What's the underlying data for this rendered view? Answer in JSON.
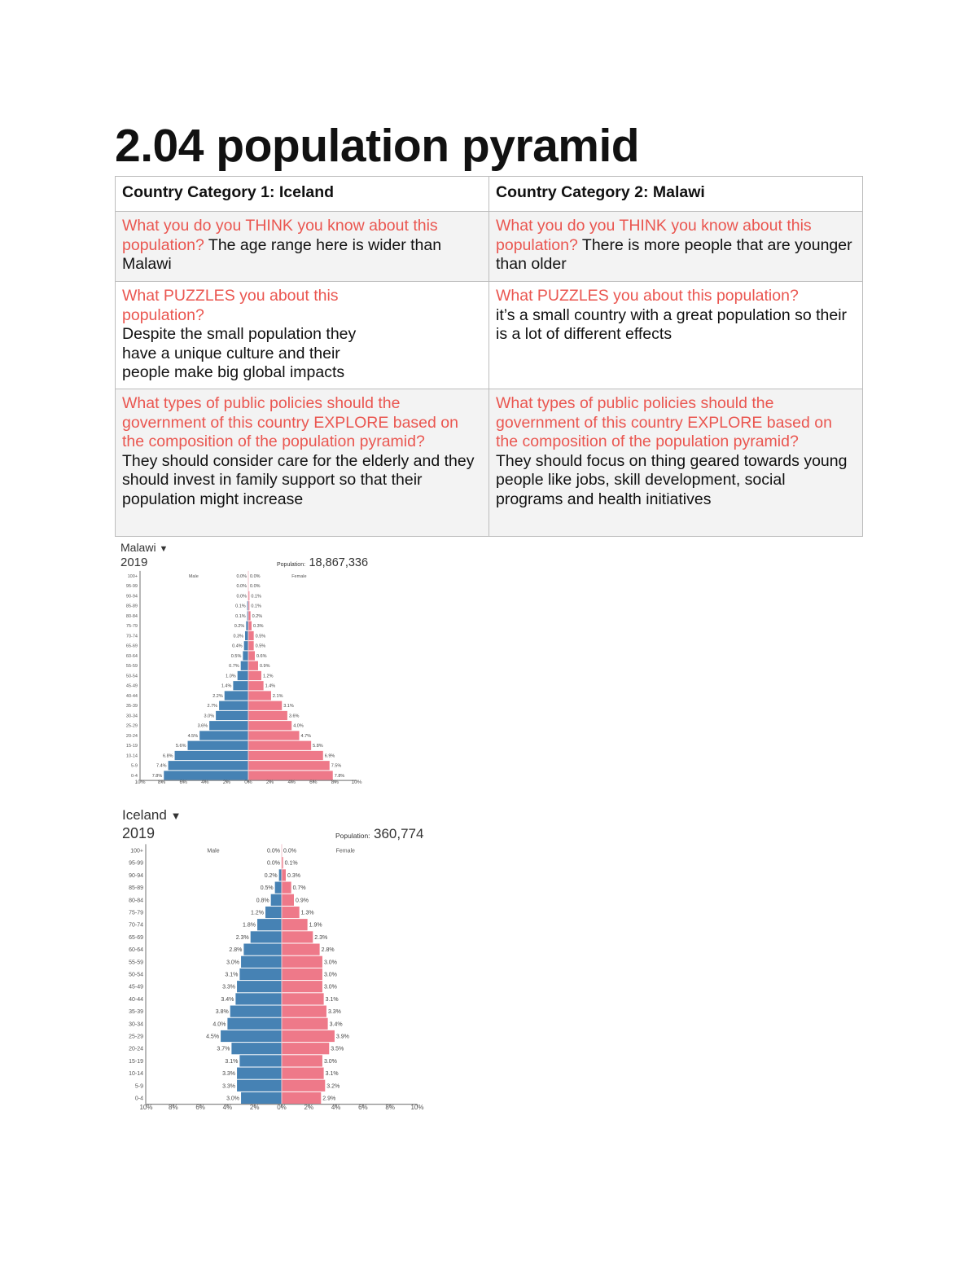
{
  "title": "2.04 population pyramid",
  "table": {
    "headers": [
      "Country Category 1: Iceland",
      "Country Category 2: Malawi"
    ],
    "rows": [
      {
        "cells": [
          {
            "question": "What you do you THINK you know about this population?",
            "answer": " The age range here is wider than Malawi"
          },
          {
            "question": "What you do you THINK you know about this population?",
            "answer": " There is more people that are younger than older"
          }
        ]
      },
      {
        "cells": [
          {
            "question": "What PUZZLES you about this population?",
            "answer": "Despite the small population they have a unique culture and their people make big global impacts"
          },
          {
            "question": "What PUZZLES you about this population?",
            "answer": "it’s a small country with a great population so their is a lot of different effects"
          }
        ]
      },
      {
        "cells": [
          {
            "question": "What types of public policies should the government of this country EXPLORE based on the composition of the population pyramid?",
            "answer": " They should consider care for the elderly and they should invest in family support so that their population might increase"
          },
          {
            "question": "What types of public policies should the government of this country EXPLORE based on the composition of the population pyramid?",
            "answer": "They should focus on thing geared towards young people like jobs, skill development, social programs and health initiatives"
          }
        ]
      }
    ]
  },
  "colors": {
    "male": "#4682b4",
    "female": "#ee7989",
    "question": "#ea5650"
  },
  "chart_data": [
    {
      "type": "bar",
      "subtype": "population-pyramid",
      "country": "Malawi",
      "dropdown_icon": "caret-down-icon",
      "year": "2019",
      "population_label": "Population:",
      "population": "18,867,336",
      "categories": [
        "100+",
        "95-99",
        "90-94",
        "85-89",
        "80-84",
        "75-79",
        "70-74",
        "65-69",
        "60-64",
        "55-59",
        "50-54",
        "45-49",
        "40-44",
        "35-39",
        "30-34",
        "25-29",
        "20-24",
        "15-19",
        "10-14",
        "5-9",
        "0-4"
      ],
      "series": [
        {
          "name": "Male",
          "values": [
            0.0,
            0.0,
            0.0,
            0.1,
            0.1,
            0.2,
            0.3,
            0.4,
            0.5,
            0.7,
            1.0,
            1.4,
            2.2,
            2.7,
            3.0,
            3.6,
            4.5,
            5.6,
            6.8,
            7.4,
            7.8
          ]
        },
        {
          "name": "Female",
          "values": [
            0.0,
            0.0,
            0.1,
            0.1,
            0.2,
            0.3,
            0.5,
            0.5,
            0.6,
            0.9,
            1.2,
            1.4,
            2.1,
            3.1,
            3.6,
            4.0,
            4.7,
            5.8,
            6.9,
            7.5,
            7.8
          ]
        }
      ],
      "x_ticks": [
        "10%",
        "8%",
        "6%",
        "4%",
        "2%",
        "0%",
        "2%",
        "4%",
        "6%",
        "8%",
        "10%"
      ],
      "xlim": [
        -10,
        10
      ]
    },
    {
      "type": "bar",
      "subtype": "population-pyramid",
      "country": "Iceland",
      "dropdown_icon": "caret-down-icon",
      "year": "2019",
      "population_label": "Population:",
      "population": "360,774",
      "categories": [
        "100+",
        "95-99",
        "90-94",
        "85-89",
        "80-84",
        "75-79",
        "70-74",
        "65-69",
        "60-64",
        "55-59",
        "50-54",
        "45-49",
        "40-44",
        "35-39",
        "30-34",
        "25-29",
        "20-24",
        "15-19",
        "10-14",
        "5-9",
        "0-4"
      ],
      "series": [
        {
          "name": "Male",
          "values": [
            0.0,
            0.0,
            0.2,
            0.5,
            0.8,
            1.2,
            1.8,
            2.3,
            2.8,
            3.0,
            3.1,
            3.3,
            3.4,
            3.8,
            4.0,
            4.5,
            3.7,
            3.1,
            3.3,
            3.3,
            3.0
          ]
        },
        {
          "name": "Female",
          "values": [
            0.0,
            0.1,
            0.3,
            0.7,
            0.9,
            1.3,
            1.9,
            2.3,
            2.8,
            3.0,
            3.0,
            3.0,
            3.1,
            3.3,
            3.4,
            3.9,
            3.5,
            3.0,
            3.1,
            3.2,
            2.9
          ]
        }
      ],
      "x_ticks": [
        "10%",
        "8%",
        "6%",
        "4%",
        "2%",
        "0%",
        "2%",
        "4%",
        "6%",
        "8%",
        "10%"
      ],
      "xlim": [
        -10,
        10
      ]
    }
  ]
}
